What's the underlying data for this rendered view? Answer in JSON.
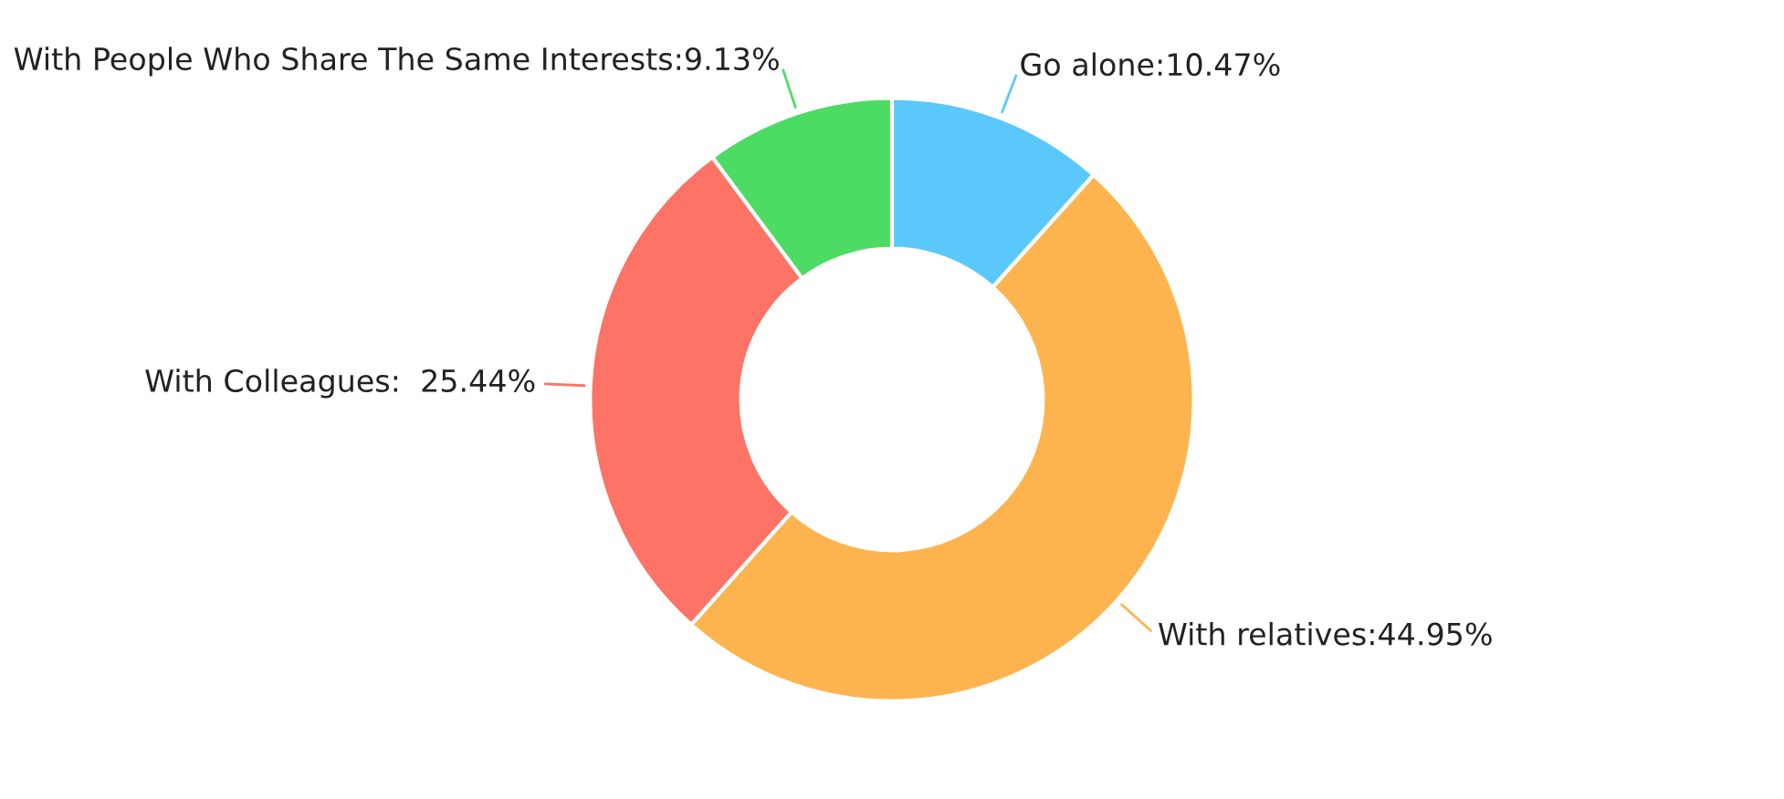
{
  "chart_data": {
    "type": "donut",
    "categories": [
      "Go alone:10.47%",
      "With relatives:44.95%",
      "With Colleagues:  25.44%",
      "With People Who Share The Same Interests:9.13%"
    ],
    "values": [
      10.47,
      44.95,
      25.44,
      9.13
    ],
    "colors": [
      "#5bc8fb",
      "#fdb44e",
      "#fd7366",
      "#4cdc64"
    ]
  }
}
